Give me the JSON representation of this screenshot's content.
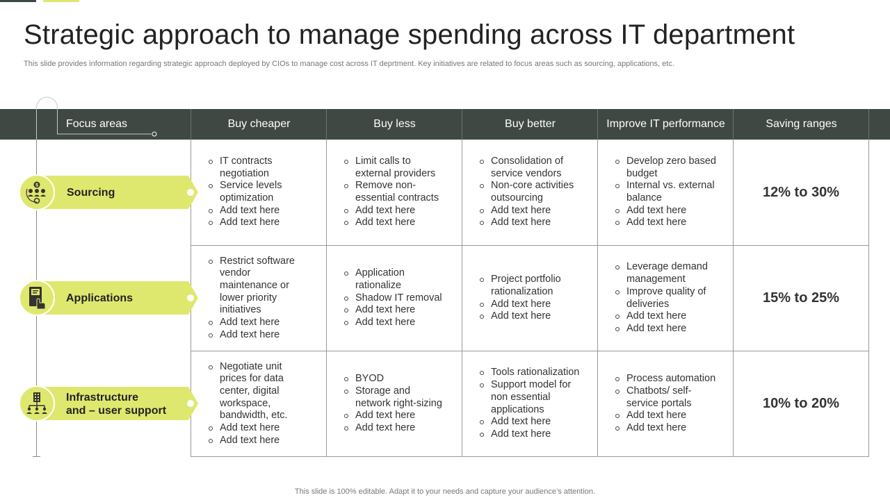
{
  "title": "Strategic approach to manage spending across IT department",
  "subtitle": "This slide provides information regarding strategic approach deployed by CIOs to manage cost across IT deprtment. Key initiatives are related to focus areas such as sourcing, applications, etc.",
  "footer": "This slide is 100% editable. Adapt it to your needs and capture your audience’s attention.",
  "colors": {
    "header_bg": "#404844",
    "accent": "#dfe86e",
    "grid": "#999999"
  },
  "headers": [
    "Focus areas",
    "Buy cheaper",
    "Buy less",
    "Buy better",
    "Improve IT performance",
    "Saving ranges"
  ],
  "rows": [
    {
      "focus": "Sourcing",
      "focus_line2": "",
      "icon": "team-money-icon",
      "cells": [
        [
          "IT contracts negotiation",
          "Service levels optimization",
          "Add text here",
          "Add text here"
        ],
        [
          "Limit calls to external providers",
          "Remove non-essential contracts",
          "Add text here",
          "Add text here"
        ],
        [
          "Consolidation of service vendors",
          "Non-core activities outsourcing",
          "Add text here",
          "Add text here"
        ],
        [
          "Develop zero based budget",
          "Internal vs. external balance",
          "Add text here",
          "Add text here"
        ]
      ],
      "saving": "12% to 30%"
    },
    {
      "focus": "Applications",
      "focus_line2": "",
      "icon": "touch-device-icon",
      "cells": [
        [
          "Restrict software vendor maintenance or lower priority initiatives",
          "Add text here",
          "Add text here"
        ],
        [
          "Application rationalize",
          "Shadow IT removal",
          "Add text here",
          "Add text here"
        ],
        [
          "Project portfolio rationalization",
          "Add text here",
          "Add text here"
        ],
        [
          "Leverage demand management",
          "Improve quality of deliveries",
          "Add text here",
          "Add text here"
        ]
      ],
      "saving": "15% to 25%"
    },
    {
      "focus": "Infrastructure",
      "focus_line2": "and – user support",
      "icon": "building-network-icon",
      "cells": [
        [
          "Negotiate unit prices for data center, digital workspace, bandwidth, etc.",
          "Add text here",
          "Add text here"
        ],
        [
          "BYOD",
          "Storage and network right-sizing",
          "Add text here",
          "Add text here"
        ],
        [
          "Tools rationalization",
          "Support model for non essential applications",
          "Add text here",
          "Add text here"
        ],
        [
          "Process automation",
          "Chatbots/ self-service portals",
          "Add text here",
          "Add text here"
        ]
      ],
      "saving": "10% to 20%"
    }
  ]
}
